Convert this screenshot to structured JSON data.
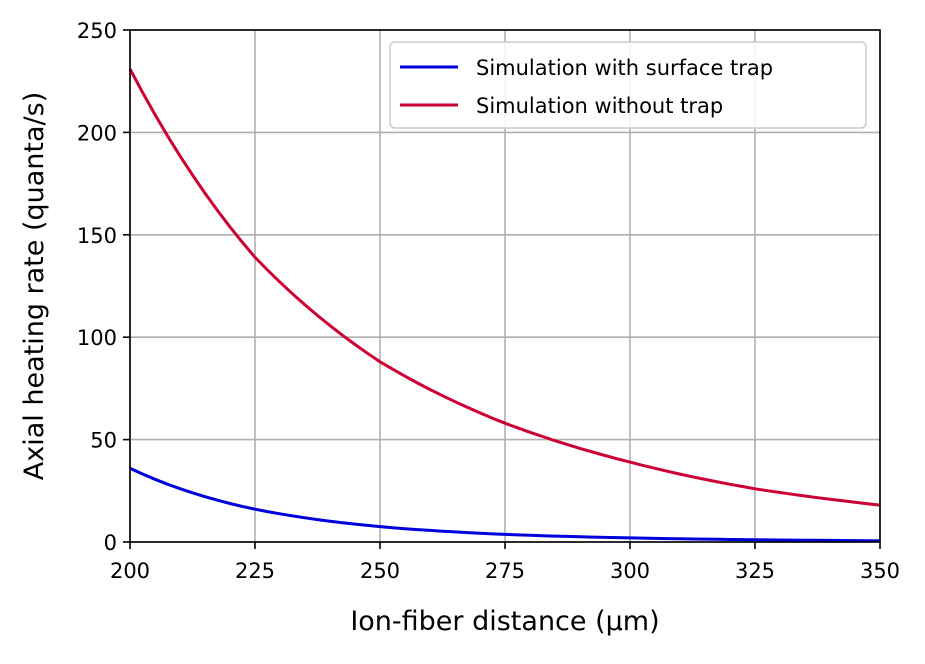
{
  "chart_data": {
    "type": "line",
    "title": "",
    "xlabel": "Ion-fiber distance (μm)",
    "ylabel": "Axial heating rate (quanta/s)",
    "xlim": [
      200,
      350
    ],
    "ylim": [
      0,
      250
    ],
    "xticks": [
      "200",
      "225",
      "250",
      "275",
      "300",
      "325",
      "350"
    ],
    "yticks": [
      "0",
      "50",
      "100",
      "150",
      "200",
      "250"
    ],
    "grid": true,
    "legend_position": "top-right",
    "x": [
      200,
      225,
      250,
      275,
      300,
      325,
      350
    ],
    "series": [
      {
        "name": "Simulation with surface trap",
        "color": "#0000dd",
        "values": [
          36,
          16,
          7.5,
          3.7,
          2.0,
          1.1,
          0.6
        ]
      },
      {
        "name": "Simulation without trap",
        "color": "#cc0033",
        "values": [
          231,
          139,
          88,
          58,
          39,
          26,
          18
        ]
      }
    ]
  }
}
